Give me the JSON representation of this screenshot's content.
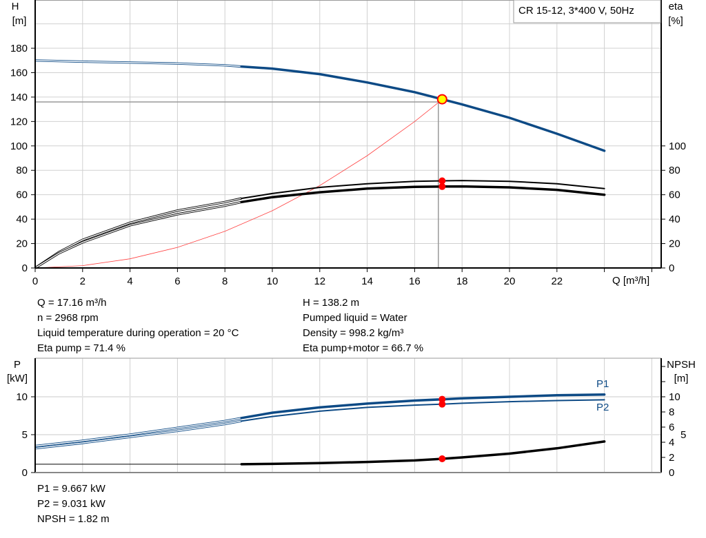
{
  "title": "CR 15-12, 3*400 V, 50Hz",
  "colors": {
    "head": "#0d4a85",
    "eta": "#000000",
    "system": "#ff4040",
    "duty_point_fill": "#ffff00",
    "duty_point_edge": "#ff0000",
    "marker": "#ff0000",
    "power": "#0d4a85",
    "npsh": "#000000",
    "grid": "#d0d0d0"
  },
  "chart_data": [
    {
      "type": "line",
      "x_label": "Q [m³/h]",
      "y_label_left": {
        "name": "H",
        "unit": "[m]"
      },
      "y_label_right": {
        "name": "eta",
        "unit": "[%]"
      },
      "xlim": [
        0,
        26
      ],
      "ylim_left": [
        0,
        200
      ],
      "ylim_right": [
        0,
        200
      ],
      "x_ticks": [
        0,
        2,
        4,
        6,
        8,
        10,
        12,
        14,
        16,
        18,
        20,
        22
      ],
      "y_ticks_left": [
        0,
        20,
        40,
        60,
        80,
        100,
        120,
        140,
        160,
        180
      ],
      "y_ticks_right": [
        0,
        20,
        40,
        60,
        80,
        100
      ],
      "grid": true,
      "series": [
        {
          "id": "head",
          "axis": "left",
          "x": [
            0,
            2,
            4,
            6,
            8,
            8.7,
            10,
            12,
            14,
            16,
            17.16,
            18,
            20,
            22,
            24
          ],
          "y": [
            170,
            169,
            168.3,
            167.5,
            166,
            165,
            163.3,
            158.8,
            152,
            144,
            138.2,
            134,
            123,
            110,
            96
          ]
        },
        {
          "id": "eta-pump",
          "axis": "right",
          "x": [
            0,
            1,
            2,
            4,
            6,
            8,
            8.7,
            10,
            12,
            14,
            16,
            17.16,
            18,
            20,
            22,
            24
          ],
          "y": [
            0,
            13,
            23,
            37,
            47,
            54,
            57,
            61,
            66,
            69,
            71,
            71.4,
            71.6,
            71,
            69,
            65
          ]
        },
        {
          "id": "eta-pump-motor",
          "axis": "right",
          "x": [
            0,
            1,
            2,
            4,
            6,
            8,
            8.7,
            10,
            12,
            14,
            16,
            17.16,
            18,
            20,
            22,
            24
          ],
          "y": [
            0,
            12,
            21,
            35,
            44,
            51,
            54,
            58,
            62,
            65,
            66.5,
            66.7,
            66.8,
            66,
            64,
            60
          ]
        },
        {
          "id": "system-curve",
          "axis": "left",
          "x": [
            0,
            2,
            4,
            6,
            8,
            10,
            12,
            14,
            16,
            17
          ],
          "y": [
            0,
            1.9,
            7.5,
            16.9,
            30,
            46.9,
            67.5,
            92,
            120,
            135.5
          ]
        }
      ],
      "duty_point": {
        "Q": 17.16,
        "H": 138.2,
        "eta_pump": 71.4,
        "eta_pump_motor": 66.7
      },
      "reference_lines": {
        "Q": 17,
        "H": 136
      }
    },
    {
      "type": "line",
      "y_label_left": {
        "name": "P",
        "unit": "[kW]"
      },
      "y_label_right": {
        "name": "NPSH",
        "unit": "[m]"
      },
      "xlim": [
        0,
        26
      ],
      "ylim_left": [
        0,
        15
      ],
      "ylim_right": [
        0,
        15
      ],
      "y_ticks_left": [
        0,
        5,
        10
      ],
      "y_ticks_right": [
        0,
        2,
        4,
        5,
        6,
        8,
        10
      ],
      "grid": true,
      "series": [
        {
          "id": "P1",
          "name": "P1",
          "axis": "left",
          "x": [
            0,
            2,
            4,
            6,
            8,
            8.7,
            10,
            12,
            14,
            16,
            17.16,
            18,
            20,
            22,
            24
          ],
          "y": [
            3.5,
            4.2,
            5.0,
            5.9,
            6.8,
            7.2,
            7.9,
            8.6,
            9.1,
            9.5,
            9.667,
            9.8,
            10.0,
            10.2,
            10.3
          ]
        },
        {
          "id": "P2",
          "name": "P2",
          "axis": "left",
          "x": [
            0,
            2,
            4,
            6,
            8,
            8.7,
            10,
            12,
            14,
            16,
            17.16,
            18,
            20,
            22,
            24
          ],
          "y": [
            3.2,
            3.9,
            4.7,
            5.5,
            6.4,
            6.8,
            7.4,
            8.1,
            8.6,
            8.9,
            9.031,
            9.15,
            9.35,
            9.5,
            9.6
          ]
        },
        {
          "id": "NPSH",
          "axis": "right",
          "x": [
            0,
            8.7,
            10,
            12,
            14,
            16,
            17.16,
            18,
            20,
            22,
            24
          ],
          "y": [
            1.1,
            1.1,
            1.15,
            1.25,
            1.4,
            1.6,
            1.82,
            2.0,
            2.5,
            3.2,
            4.1
          ]
        }
      ]
    }
  ],
  "info_left": [
    "Q = 17.16 m³/h",
    "n = 2968 rpm",
    "Liquid temperature during operation = 20 °C",
    "Eta pump = 71.4 %"
  ],
  "info_right": [
    "H = 138.2 m",
    "Pumped liquid = Water",
    "Density = 998.2 kg/m³",
    "Eta pump+motor = 66.7 %"
  ],
  "info_bottom": [
    "P1 = 9.667 kW",
    "P2 = 9.031 kW",
    "NPSH = 1.82 m"
  ]
}
